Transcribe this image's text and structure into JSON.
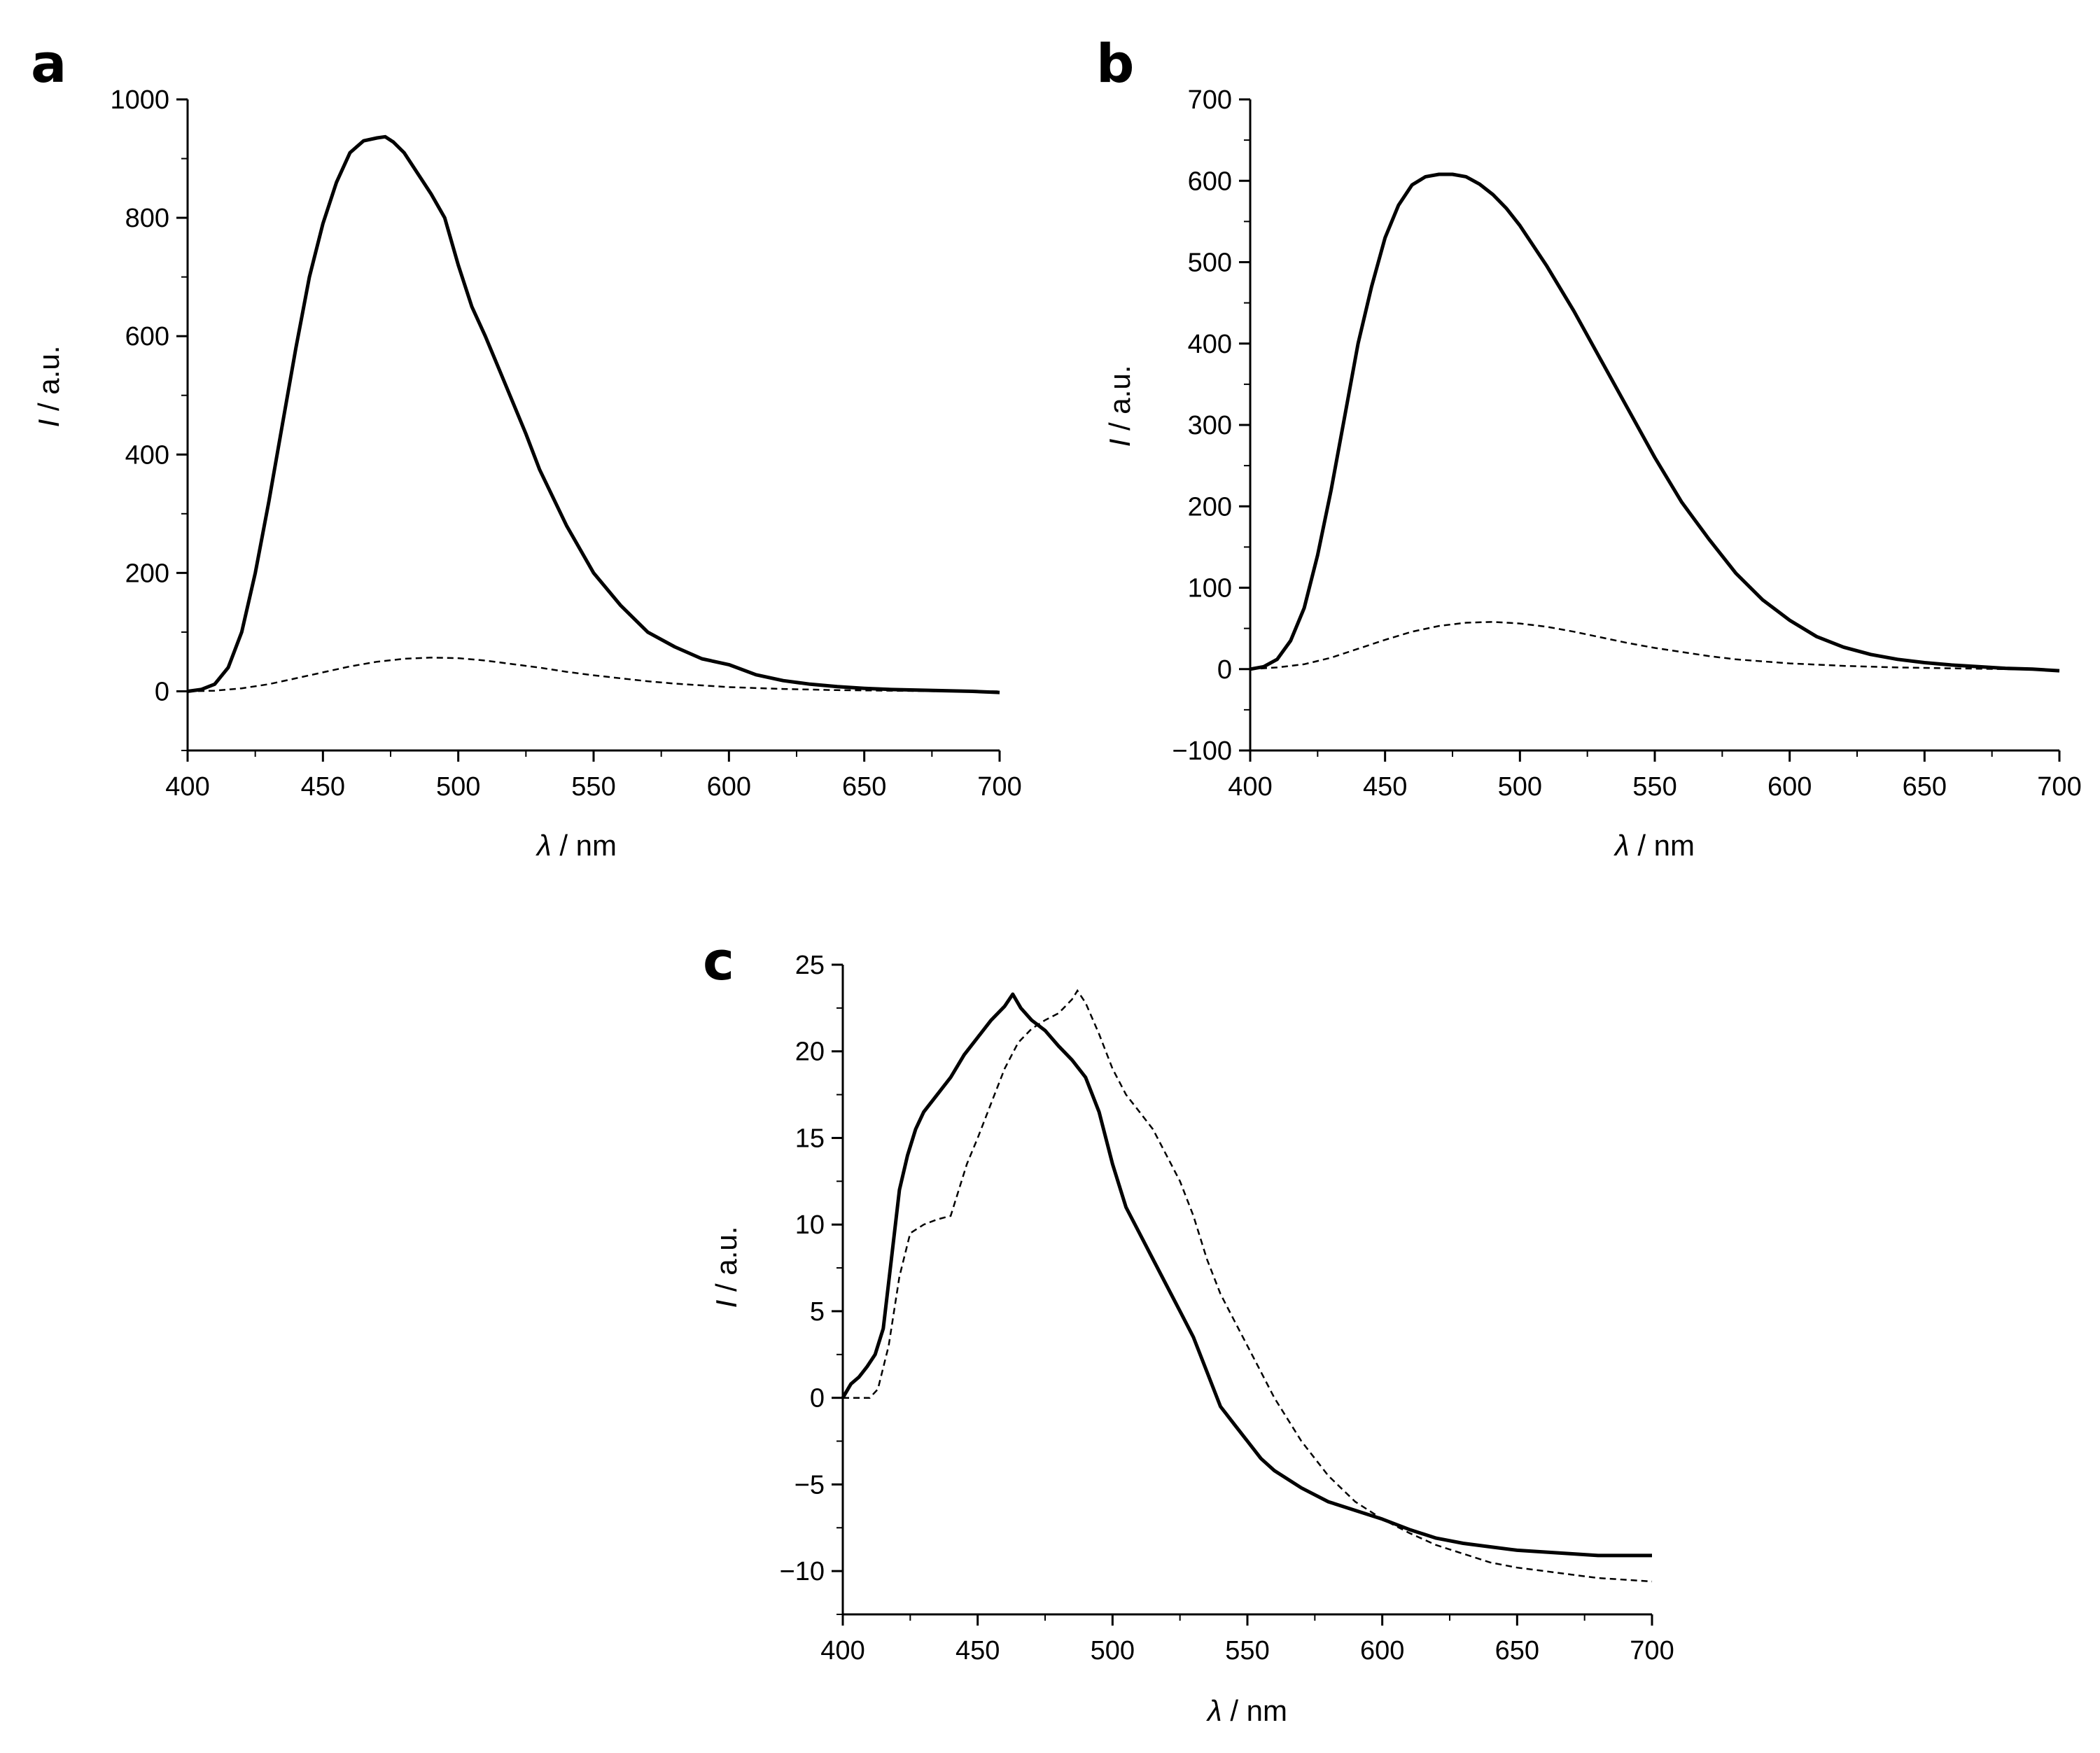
{
  "chart_data": [
    {
      "panel": "a",
      "type": "line",
      "title": "",
      "xlabel_symbol": "λ",
      "xlabel_unit": "/ nm",
      "ylabel_symbol": "I",
      "ylabel_unit": "/ a.u.",
      "xlim": [
        400,
        700
      ],
      "ylim": [
        -100,
        1000
      ],
      "xticks": [
        400,
        450,
        500,
        550,
        600,
        650,
        700
      ],
      "yticks": [
        0,
        200,
        400,
        600,
        800,
        1000
      ],
      "series": [
        {
          "name": "solid",
          "style": "solid",
          "x": [
            400,
            405,
            410,
            415,
            420,
            425,
            430,
            435,
            440,
            445,
            450,
            455,
            460,
            465,
            470,
            473,
            476,
            480,
            485,
            490,
            495,
            500,
            505,
            510,
            515,
            520,
            525,
            530,
            540,
            550,
            560,
            570,
            580,
            590,
            600,
            610,
            620,
            630,
            640,
            650,
            660,
            670,
            680,
            690,
            700
          ],
          "values": [
            0,
            3,
            12,
            40,
            100,
            200,
            320,
            450,
            580,
            700,
            790,
            860,
            910,
            930,
            935,
            937,
            928,
            910,
            875,
            840,
            800,
            720,
            650,
            600,
            545,
            490,
            435,
            375,
            280,
            200,
            145,
            100,
            75,
            55,
            45,
            28,
            18,
            12,
            8,
            5,
            3,
            2,
            1,
            0,
            -2
          ]
        },
        {
          "name": "dashed",
          "style": "dashed",
          "x": [
            400,
            410,
            420,
            430,
            440,
            450,
            460,
            470,
            480,
            490,
            500,
            510,
            520,
            530,
            540,
            550,
            560,
            570,
            580,
            590,
            600,
            620,
            640,
            660,
            680,
            700
          ],
          "values": [
            0,
            1,
            5,
            12,
            22,
            32,
            42,
            50,
            55,
            57,
            56,
            52,
            46,
            40,
            33,
            27,
            22,
            17,
            13,
            10,
            7,
            4,
            2,
            1,
            0,
            0
          ]
        }
      ]
    },
    {
      "panel": "b",
      "type": "line",
      "title": "",
      "xlabel_symbol": "λ",
      "xlabel_unit": "/ nm",
      "ylabel_symbol": "I",
      "ylabel_unit": "/ a.u.",
      "xlim": [
        400,
        700
      ],
      "ylim": [
        -100,
        700
      ],
      "xticks": [
        400,
        450,
        500,
        550,
        600,
        650,
        700
      ],
      "yticks": [
        -100,
        0,
        100,
        200,
        300,
        400,
        500,
        600,
        700
      ],
      "series": [
        {
          "name": "solid",
          "style": "solid",
          "x": [
            400,
            405,
            410,
            415,
            420,
            425,
            430,
            435,
            440,
            445,
            450,
            455,
            460,
            465,
            470,
            475,
            480,
            485,
            490,
            495,
            500,
            510,
            520,
            530,
            540,
            550,
            560,
            570,
            580,
            590,
            600,
            610,
            620,
            630,
            640,
            650,
            660,
            670,
            680,
            690,
            700
          ],
          "values": [
            0,
            3,
            12,
            35,
            75,
            140,
            220,
            310,
            400,
            470,
            530,
            570,
            595,
            605,
            608,
            608,
            605,
            596,
            583,
            566,
            545,
            495,
            440,
            380,
            320,
            260,
            205,
            160,
            118,
            85,
            60,
            40,
            27,
            18,
            12,
            8,
            5,
            3,
            1,
            0,
            -2
          ]
        },
        {
          "name": "dashed",
          "style": "dashed",
          "x": [
            400,
            410,
            420,
            430,
            440,
            450,
            460,
            470,
            480,
            490,
            500,
            510,
            520,
            530,
            540,
            550,
            560,
            570,
            580,
            600,
            620,
            640,
            660,
            680,
            700
          ],
          "values": [
            0,
            2,
            6,
            14,
            25,
            36,
            46,
            53,
            57,
            58,
            56,
            52,
            46,
            39,
            32,
            26,
            21,
            16,
            12,
            7,
            4,
            2,
            1,
            0,
            -1
          ]
        }
      ]
    },
    {
      "panel": "c",
      "type": "line",
      "title": "",
      "xlabel_symbol": "λ",
      "xlabel_unit": "/ nm",
      "ylabel_symbol": "I",
      "ylabel_unit": "/ a.u.",
      "xlim": [
        400,
        700
      ],
      "ylim": [
        -12.5,
        25
      ],
      "xticks": [
        400,
        450,
        500,
        550,
        600,
        650,
        700
      ],
      "yticks": [
        -10,
        -5,
        0,
        5,
        10,
        15,
        20,
        25
      ],
      "series": [
        {
          "name": "solid",
          "style": "solid",
          "x": [
            400,
            403,
            406,
            409,
            412,
            415,
            418,
            421,
            424,
            427,
            430,
            435,
            440,
            445,
            450,
            455,
            460,
            463,
            466,
            470,
            475,
            480,
            485,
            490,
            495,
            500,
            505,
            510,
            515,
            520,
            525,
            530,
            535,
            540,
            545,
            550,
            555,
            560,
            570,
            580,
            590,
            600,
            610,
            620,
            630,
            640,
            650,
            660,
            670,
            680,
            690,
            700
          ],
          "values": [
            0,
            0.8,
            1.2,
            1.8,
            2.5,
            4,
            8,
            12,
            14,
            15.5,
            16.5,
            17.5,
            18.5,
            19.8,
            20.8,
            21.8,
            22.6,
            23.3,
            22.5,
            21.8,
            21.2,
            20.3,
            19.5,
            18.5,
            16.5,
            13.5,
            11,
            9.5,
            8,
            6.5,
            5,
            3.5,
            1.5,
            -0.5,
            -1.5,
            -2.5,
            -3.5,
            -4.2,
            -5.2,
            -6,
            -6.5,
            -7,
            -7.6,
            -8.1,
            -8.4,
            -8.6,
            -8.8,
            -8.9,
            -9,
            -9.1,
            -9.1,
            -9.1
          ]
        },
        {
          "name": "dashed",
          "style": "dashed",
          "x": [
            400,
            405,
            410,
            413,
            417,
            421,
            425,
            430,
            435,
            440,
            443,
            446,
            450,
            455,
            460,
            465,
            470,
            475,
            480,
            485,
            487,
            490,
            495,
            500,
            505,
            510,
            515,
            520,
            525,
            530,
            535,
            540,
            545,
            550,
            555,
            560,
            570,
            580,
            590,
            600,
            610,
            620,
            630,
            640,
            650,
            660,
            670,
            680,
            690,
            700
          ],
          "values": [
            0,
            0,
            0,
            0.5,
            3,
            7,
            9.5,
            10,
            10.3,
            10.5,
            12,
            13.5,
            15,
            17,
            19,
            20.5,
            21.3,
            21.8,
            22.2,
            23,
            23.5,
            22.8,
            21,
            19,
            17.5,
            16.5,
            15.5,
            14,
            12.5,
            10.5,
            8,
            6,
            4.5,
            3,
            1.5,
            0,
            -2.5,
            -4.5,
            -6,
            -7,
            -7.8,
            -8.5,
            -9,
            -9.5,
            -9.8,
            -10,
            -10.2,
            -10.4,
            -10.5,
            -10.6
          ]
        }
      ]
    }
  ]
}
